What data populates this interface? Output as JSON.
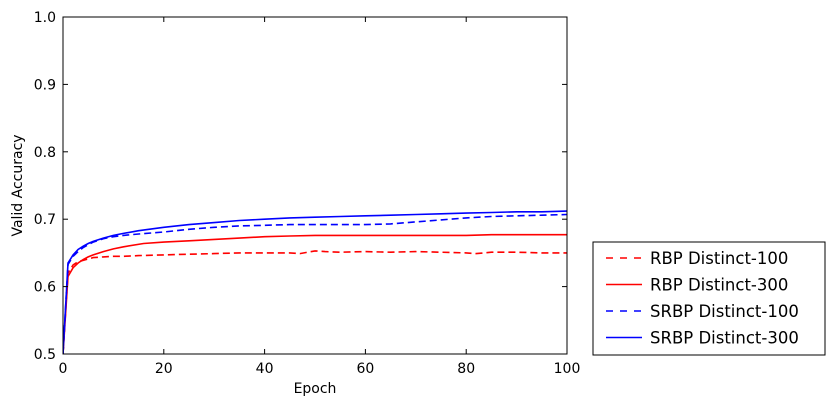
{
  "chart_data": {
    "type": "line",
    "xlabel": "Epoch",
    "ylabel": "Valid Accuracy",
    "xlim": [
      0,
      100
    ],
    "ylim": [
      0.5,
      1.0
    ],
    "xticks": [
      "0",
      "20",
      "40",
      "60",
      "80",
      "100"
    ],
    "yticks": [
      "0.5",
      "0.6",
      "0.7",
      "0.8",
      "0.9",
      "1.0"
    ],
    "grid": false,
    "legend_position": "outside-bottom-right",
    "series": [
      {
        "name": "RBP Distinct-100",
        "color": "#ff0000",
        "dash": "dashed",
        "x": [
          0,
          1,
          2,
          3,
          4,
          5,
          6,
          8,
          10,
          12,
          15,
          20,
          25,
          30,
          35,
          40,
          45,
          47,
          50,
          52,
          55,
          60,
          65,
          70,
          75,
          80,
          82,
          85,
          90,
          95,
          100
        ],
        "y": [
          0.5,
          0.62,
          0.632,
          0.637,
          0.639,
          0.641,
          0.643,
          0.644,
          0.645,
          0.645,
          0.646,
          0.647,
          0.648,
          0.649,
          0.65,
          0.65,
          0.65,
          0.649,
          0.653,
          0.652,
          0.651,
          0.652,
          0.651,
          0.652,
          0.651,
          0.65,
          0.649,
          0.651,
          0.651,
          0.65,
          0.65
        ]
      },
      {
        "name": "RBP Distinct-300",
        "color": "#ff0000",
        "dash": "solid",
        "x": [
          0,
          1,
          2,
          3,
          4,
          5,
          6,
          8,
          10,
          12,
          16,
          20,
          25,
          30,
          35,
          40,
          45,
          50,
          55,
          60,
          65,
          70,
          75,
          80,
          85,
          90,
          95,
          100
        ],
        "y": [
          0.5,
          0.615,
          0.628,
          0.635,
          0.64,
          0.644,
          0.647,
          0.652,
          0.656,
          0.659,
          0.664,
          0.666,
          0.668,
          0.67,
          0.672,
          0.674,
          0.675,
          0.676,
          0.676,
          0.676,
          0.676,
          0.676,
          0.676,
          0.676,
          0.677,
          0.677,
          0.677,
          0.677
        ]
      },
      {
        "name": "SRBP Distinct-100",
        "color": "#0000ff",
        "dash": "dashed",
        "x": [
          0,
          1,
          2,
          3,
          4,
          5,
          6,
          8,
          10,
          12,
          15,
          20,
          25,
          30,
          35,
          40,
          45,
          50,
          55,
          60,
          65,
          70,
          75,
          80,
          85,
          90,
          95,
          100
        ],
        "y": [
          0.5,
          0.633,
          0.645,
          0.652,
          0.658,
          0.662,
          0.666,
          0.671,
          0.674,
          0.676,
          0.678,
          0.681,
          0.685,
          0.688,
          0.69,
          0.691,
          0.692,
          0.692,
          0.692,
          0.692,
          0.693,
          0.696,
          0.699,
          0.702,
          0.704,
          0.705,
          0.706,
          0.707
        ]
      },
      {
        "name": "SRBP Distinct-300",
        "color": "#0000ff",
        "dash": "solid",
        "x": [
          0,
          1,
          2,
          3,
          4,
          5,
          6,
          8,
          10,
          12,
          15,
          20,
          25,
          30,
          35,
          40,
          45,
          50,
          55,
          60,
          65,
          70,
          75,
          80,
          85,
          90,
          95,
          100
        ],
        "y": [
          0.5,
          0.635,
          0.647,
          0.655,
          0.66,
          0.664,
          0.667,
          0.672,
          0.676,
          0.679,
          0.683,
          0.688,
          0.692,
          0.695,
          0.698,
          0.7,
          0.702,
          0.703,
          0.704,
          0.705,
          0.706,
          0.707,
          0.708,
          0.709,
          0.71,
          0.711,
          0.711,
          0.712
        ]
      }
    ]
  }
}
